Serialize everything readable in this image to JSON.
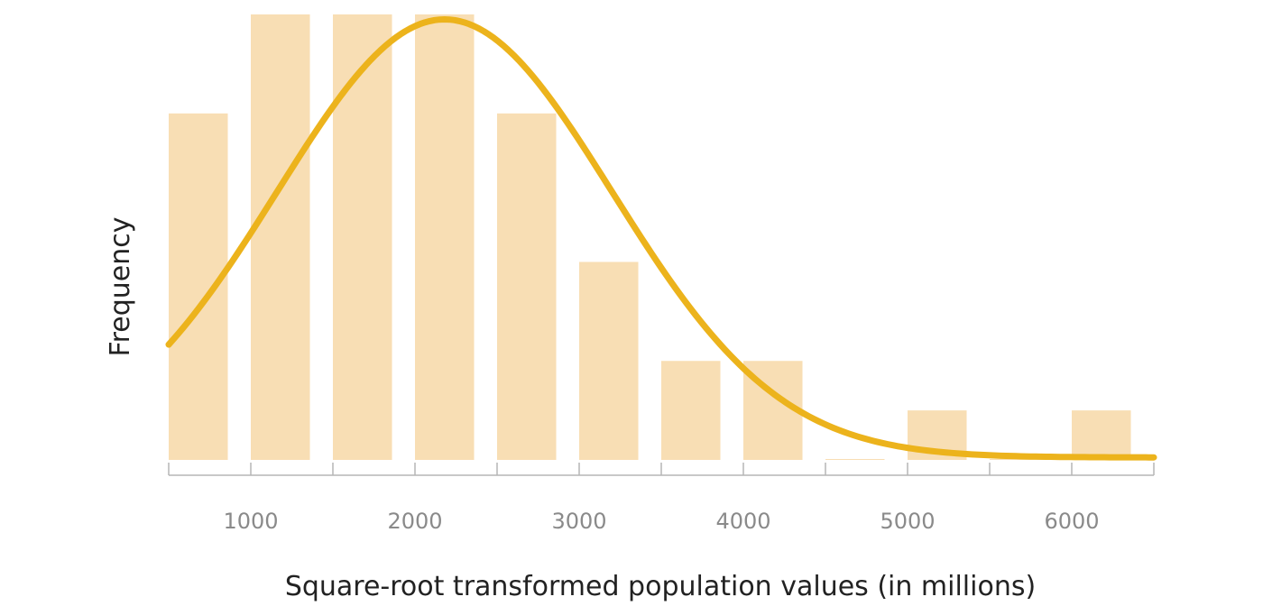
{
  "chart_data": {
    "type": "bar",
    "title": "",
    "xlabel": "Square-root transformed population values (in millions)",
    "ylabel": "Frequency",
    "x_bin_edges": [
      500,
      1000,
      1500,
      2000,
      2500,
      3000,
      3500,
      4000,
      4500,
      5000,
      5500,
      6000,
      6500
    ],
    "values": [
      7,
      9,
      9,
      9,
      7,
      4,
      2,
      2,
      0,
      1,
      0,
      1
    ],
    "x_tick_values": [
      1000,
      2000,
      3000,
      4000,
      5000,
      6000
    ],
    "x_tick_labels": [
      "1000",
      "2000",
      "3000",
      "4000",
      "5000",
      "6000"
    ],
    "xlim": [
      500,
      6500
    ],
    "ylim": [
      0,
      9
    ],
    "grid": false,
    "legend": "none",
    "colors": {
      "bar": "#f8deb4",
      "curve": "#ecb31c",
      "axis": "#b5b5b5",
      "tick_label": "#8a8a8a",
      "axis_title": "#222222"
    },
    "normal_curve": {
      "mean": 2180,
      "std_dev": 1020,
      "peak_frequency": 8.9,
      "baseline_frequency": 0.05
    }
  }
}
